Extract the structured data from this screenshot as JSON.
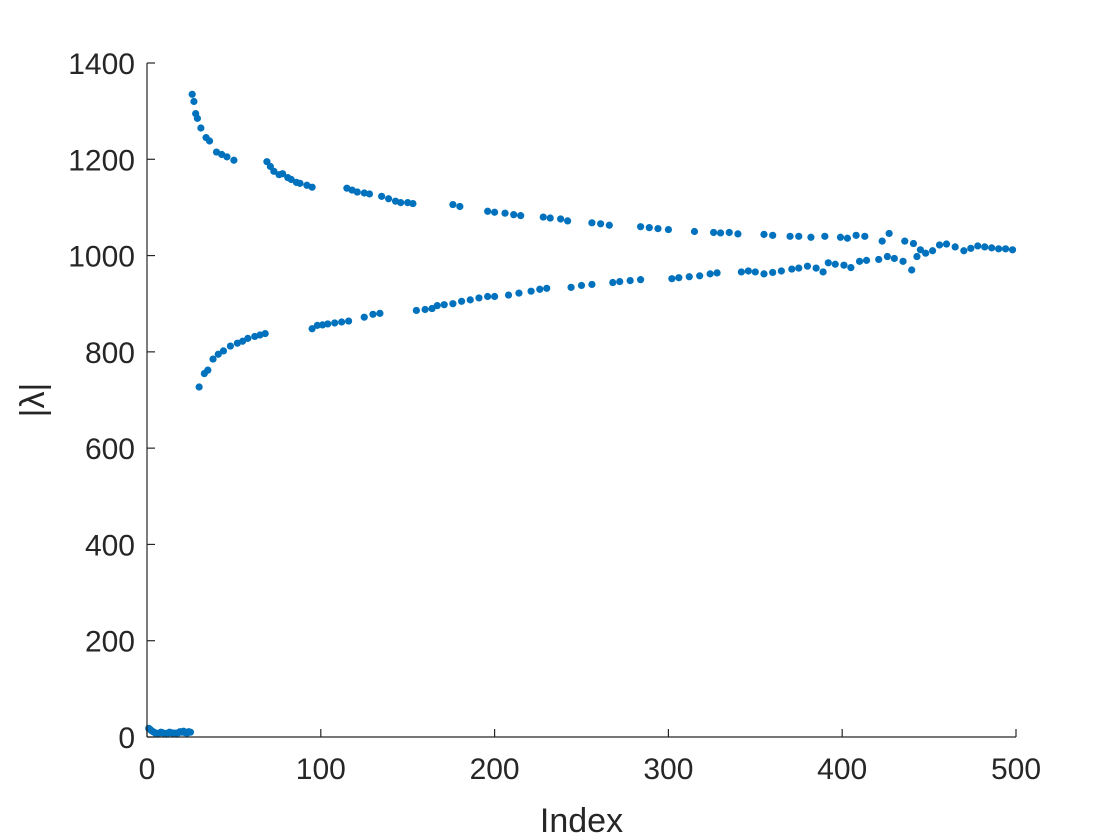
{
  "chart_data": {
    "type": "scatter",
    "xlabel": "Index",
    "ylabel": "|λ|",
    "xlim": [
      0,
      500
    ],
    "ylim": [
      0,
      1400
    ],
    "x_ticks": [
      0,
      100,
      200,
      300,
      400,
      500
    ],
    "y_ticks": [
      0,
      200,
      400,
      600,
      800,
      1000,
      1200,
      1400
    ],
    "x_tick_labels": [
      "0",
      "100",
      "200",
      "300",
      "400",
      "500"
    ],
    "y_tick_labels": [
      "0",
      "200",
      "400",
      "600",
      "800",
      "1000",
      "1200",
      "1400"
    ],
    "grid": false,
    "marker_color": "#0072BD",
    "series": [
      {
        "points": [
          [
            1,
            18
          ],
          [
            2,
            15
          ],
          [
            3,
            12
          ],
          [
            4,
            10
          ],
          [
            5,
            8
          ],
          [
            6,
            6
          ],
          [
            7,
            8
          ],
          [
            8,
            10
          ],
          [
            9,
            9
          ],
          [
            10,
            7
          ],
          [
            11,
            6
          ],
          [
            12,
            8
          ],
          [
            13,
            10
          ],
          [
            14,
            9
          ],
          [
            15,
            7
          ],
          [
            16,
            8
          ],
          [
            17,
            6
          ],
          [
            18,
            9
          ],
          [
            19,
            11
          ],
          [
            20,
            10
          ],
          [
            21,
            12
          ],
          [
            22,
            9
          ],
          [
            23,
            8
          ],
          [
            24,
            11
          ],
          [
            25,
            10
          ],
          [
            26,
            1335
          ],
          [
            27,
            1320
          ],
          [
            28,
            1295
          ],
          [
            29,
            1285
          ],
          [
            31,
            1265
          ],
          [
            34,
            1245
          ],
          [
            36,
            1238
          ],
          [
            40,
            1215
          ],
          [
            43,
            1210
          ],
          [
            46,
            1205
          ],
          [
            50,
            1198
          ],
          [
            69,
            1195
          ],
          [
            71,
            1185
          ],
          [
            73,
            1175
          ],
          [
            76,
            1168
          ],
          [
            78,
            1170
          ],
          [
            81,
            1162
          ],
          [
            83,
            1158
          ],
          [
            86,
            1152
          ],
          [
            88,
            1150
          ],
          [
            92,
            1146
          ],
          [
            95,
            1142
          ],
          [
            115,
            1140
          ],
          [
            118,
            1136
          ],
          [
            121,
            1132
          ],
          [
            125,
            1130
          ],
          [
            128,
            1128
          ],
          [
            135,
            1123
          ],
          [
            139,
            1118
          ],
          [
            143,
            1113
          ],
          [
            146,
            1110
          ],
          [
            150,
            1110
          ],
          [
            153,
            1108
          ],
          [
            176,
            1106
          ],
          [
            180,
            1102
          ],
          [
            196,
            1092
          ],
          [
            200,
            1090
          ],
          [
            206,
            1088
          ],
          [
            211,
            1085
          ],
          [
            215,
            1083
          ],
          [
            228,
            1080
          ],
          [
            232,
            1078
          ],
          [
            238,
            1076
          ],
          [
            242,
            1072
          ],
          [
            256,
            1068
          ],
          [
            261,
            1066
          ],
          [
            266,
            1063
          ],
          [
            284,
            1060
          ],
          [
            289,
            1058
          ],
          [
            294,
            1056
          ],
          [
            300,
            1054
          ],
          [
            315,
            1050
          ],
          [
            326,
            1048
          ],
          [
            330,
            1047
          ],
          [
            335,
            1048
          ],
          [
            340,
            1045
          ],
          [
            355,
            1044
          ],
          [
            360,
            1042
          ],
          [
            370,
            1040
          ],
          [
            375,
            1040
          ],
          [
            382,
            1038
          ],
          [
            390,
            1040
          ],
          [
            399,
            1038
          ],
          [
            403,
            1036
          ],
          [
            408,
            1042
          ],
          [
            413,
            1040
          ],
          [
            423,
            1030
          ],
          [
            427,
            1046
          ],
          [
            436,
            1030
          ],
          [
            441,
            1025
          ],
          [
            445,
            1012
          ],
          [
            30,
            727
          ],
          [
            33,
            755
          ],
          [
            35,
            762
          ],
          [
            38,
            785
          ],
          [
            41,
            795
          ],
          [
            44,
            802
          ],
          [
            48,
            812
          ],
          [
            52,
            818
          ],
          [
            55,
            822
          ],
          [
            58,
            828
          ],
          [
            62,
            832
          ],
          [
            65,
            835
          ],
          [
            68,
            838
          ],
          [
            95,
            848
          ],
          [
            98,
            855
          ],
          [
            101,
            856
          ],
          [
            104,
            858
          ],
          [
            108,
            860
          ],
          [
            112,
            862
          ],
          [
            116,
            864
          ],
          [
            125,
            872
          ],
          [
            130,
            878
          ],
          [
            134,
            880
          ],
          [
            155,
            886
          ],
          [
            160,
            888
          ],
          [
            164,
            890
          ],
          [
            167,
            896
          ],
          [
            171,
            898
          ],
          [
            176,
            900
          ],
          [
            181,
            905
          ],
          [
            186,
            908
          ],
          [
            191,
            912
          ],
          [
            196,
            915
          ],
          [
            200,
            915
          ],
          [
            208,
            918
          ],
          [
            214,
            922
          ],
          [
            221,
            926
          ],
          [
            226,
            930
          ],
          [
            230,
            932
          ],
          [
            244,
            934
          ],
          [
            250,
            938
          ],
          [
            256,
            940
          ],
          [
            268,
            944
          ],
          [
            272,
            946
          ],
          [
            278,
            948
          ],
          [
            284,
            950
          ],
          [
            302,
            952
          ],
          [
            306,
            954
          ],
          [
            312,
            956
          ],
          [
            318,
            958
          ],
          [
            324,
            962
          ],
          [
            328,
            964
          ],
          [
            342,
            966
          ],
          [
            346,
            968
          ],
          [
            350,
            966
          ],
          [
            355,
            962
          ],
          [
            360,
            965
          ],
          [
            365,
            968
          ],
          [
            371,
            972
          ],
          [
            375,
            974
          ],
          [
            380,
            978
          ],
          [
            385,
            974
          ],
          [
            389,
            966
          ],
          [
            392,
            985
          ],
          [
            396,
            982
          ],
          [
            401,
            980
          ],
          [
            405,
            975
          ],
          [
            410,
            988
          ],
          [
            414,
            990
          ],
          [
            421,
            992
          ],
          [
            426,
            998
          ],
          [
            430,
            994
          ],
          [
            435,
            988
          ],
          [
            440,
            970
          ],
          [
            443,
            998
          ],
          [
            448,
            1005
          ],
          [
            452,
            1010
          ],
          [
            456,
            1022
          ],
          [
            460,
            1024
          ],
          [
            465,
            1018
          ],
          [
            470,
            1010
          ],
          [
            474,
            1015
          ],
          [
            478,
            1020
          ],
          [
            482,
            1018
          ],
          [
            486,
            1016
          ],
          [
            490,
            1014
          ],
          [
            494,
            1014
          ],
          [
            498,
            1012
          ]
        ]
      }
    ]
  }
}
